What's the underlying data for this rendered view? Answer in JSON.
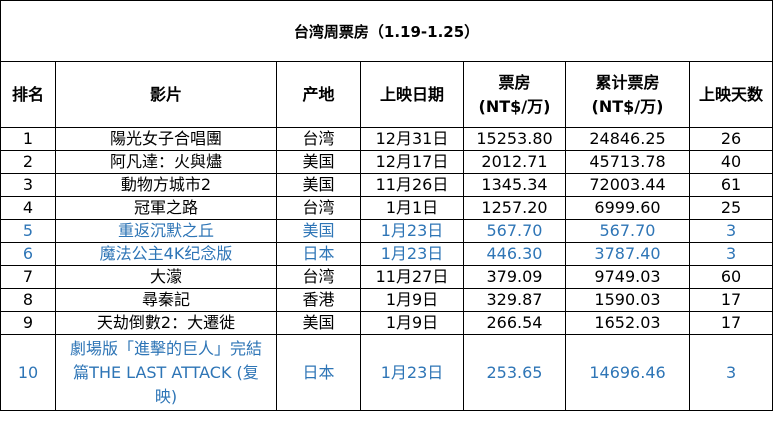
{
  "title": "台湾周票房（1.19-1.25）",
  "columns": [
    "排名",
    "影片",
    "产地",
    "上映日期",
    "票房\n(NT$/万)",
    "累计票房\n(NT$/万)",
    "上映天数"
  ],
  "rows": [
    {
      "rank": "1",
      "film": "陽光女子合唱團",
      "origin": "台湾",
      "release": "12月31日",
      "gross": "15253.80",
      "total": "24846.25",
      "days": "26",
      "new": false
    },
    {
      "rank": "2",
      "film": "阿凡達：火與燼",
      "origin": "美国",
      "release": "12月17日",
      "gross": "2012.71",
      "total": "45713.78",
      "days": "40",
      "new": false
    },
    {
      "rank": "3",
      "film": "動物方城市2",
      "origin": "美国",
      "release": "11月26日",
      "gross": "1345.34",
      "total": "72003.44",
      "days": "61",
      "new": false
    },
    {
      "rank": "4",
      "film": "冠軍之路",
      "origin": "台湾",
      "release": "1月1日",
      "gross": "1257.20",
      "total": "6999.60",
      "days": "25",
      "new": false
    },
    {
      "rank": "5",
      "film": "重返沉默之丘",
      "origin": "美国",
      "release": "1月23日",
      "gross": "567.70",
      "total": "567.70",
      "days": "3",
      "new": true
    },
    {
      "rank": "6",
      "film": "魔法公主4K纪念版",
      "origin": "日本",
      "release": "1月23日",
      "gross": "446.30",
      "total": "3787.40",
      "days": "3",
      "new": true
    },
    {
      "rank": "7",
      "film": "大濛",
      "origin": "台湾",
      "release": "11月27日",
      "gross": "379.09",
      "total": "9749.03",
      "days": "60",
      "new": false
    },
    {
      "rank": "8",
      "film": "尋秦記",
      "origin": "香港",
      "release": "1月9日",
      "gross": "329.87",
      "total": "1590.03",
      "days": "17",
      "new": false
    },
    {
      "rank": "9",
      "film": "天劫倒數2：大遷徙",
      "origin": "美国",
      "release": "1月9日",
      "gross": "266.54",
      "total": "1652.03",
      "days": "17",
      "new": false
    },
    {
      "rank": "10",
      "film": "劇場版「進擊的巨人」完結篇THE LAST ATTACK (复映)",
      "origin": "日本",
      "release": "1月23日",
      "gross": "253.65",
      "total": "14696.46",
      "days": "3",
      "new": true
    }
  ],
  "colors": {
    "text": "#000000",
    "new_release": "#2e75b6",
    "border": "#000000"
  }
}
